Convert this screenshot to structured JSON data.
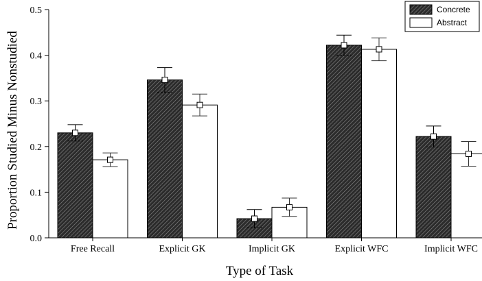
{
  "chart_data": {
    "type": "bar",
    "categories": [
      "Free Recall",
      "Explicit GK",
      "Implicit GK",
      "Explicit WFC",
      "Implicit WFC"
    ],
    "series": [
      {
        "name": "Concrete",
        "values": [
          0.23,
          0.346,
          0.042,
          0.422,
          0.222
        ],
        "errors": [
          0.018,
          0.027,
          0.02,
          0.022,
          0.023
        ],
        "fill": "hatched",
        "color": "#2b2b2b"
      },
      {
        "name": "Abstract",
        "values": [
          0.171,
          0.291,
          0.067,
          0.413,
          0.184
        ],
        "errors": [
          0.015,
          0.024,
          0.02,
          0.025,
          0.027
        ],
        "fill": "white",
        "color": "#ffffff"
      }
    ],
    "xlabel": "Type of Task",
    "ylabel": "Proportion Studied Minus Nonstudied",
    "ylim": [
      0.0,
      0.5
    ],
    "yticks": [
      {
        "value": 0.0,
        "label": "0.0"
      },
      {
        "value": 0.1,
        "label": "0.1"
      },
      {
        "value": 0.2,
        "label": "0.2"
      },
      {
        "value": 0.3,
        "label": "0.3"
      },
      {
        "value": 0.4,
        "label": "0.4"
      },
      {
        "value": 0.5,
        "label": "0.5"
      }
    ],
    "legend_position": "top-right",
    "grid": false
  }
}
